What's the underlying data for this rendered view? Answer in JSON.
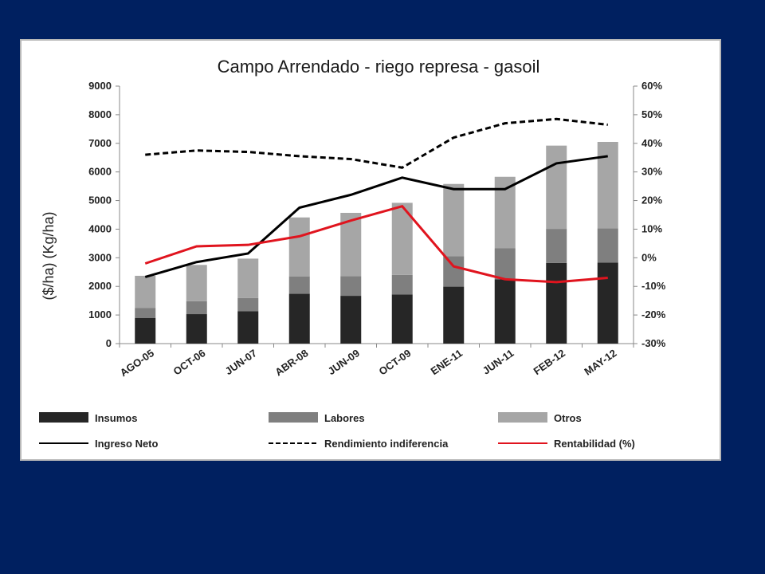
{
  "chart_data": {
    "type": "bar",
    "title": "Campo Arrendado - riego represa - gasoil",
    "ylabel": "($/ha)  (Kg/ha)",
    "ylim": [
      0,
      9000
    ],
    "y_ticks": [
      0,
      1000,
      2000,
      3000,
      4000,
      5000,
      6000,
      7000,
      8000,
      9000
    ],
    "y2lim": [
      -30,
      60
    ],
    "y2_ticks": [
      "-30%",
      "-20%",
      "-10%",
      "0%",
      "10%",
      "20%",
      "30%",
      "40%",
      "50%",
      "60%"
    ],
    "y2_values": [
      -30,
      -20,
      -10,
      0,
      10,
      20,
      30,
      40,
      50,
      60
    ],
    "categories": [
      "AGO-05",
      "OCT-06",
      "JUN-07",
      "ABR-08",
      "JUN-09",
      "OCT-09",
      "ENE-11",
      "JUN-11",
      "FEB-12",
      "MAY-12"
    ],
    "stacked": true,
    "grid": false,
    "legend_position": "bottom",
    "series": [
      {
        "name": "Insumos",
        "kind": "bar",
        "axis": "left",
        "color": "#262626",
        "values": [
          900,
          1030,
          1130,
          1740,
          1670,
          1720,
          1990,
          2250,
          2820,
          2830
        ]
      },
      {
        "name": "Labores",
        "kind": "bar",
        "axis": "left",
        "color": "#7f7f7f",
        "values": [
          350,
          450,
          460,
          610,
          690,
          680,
          1060,
          1080,
          1190,
          1200
        ]
      },
      {
        "name": "Otros",
        "kind": "bar",
        "axis": "left",
        "color": "#a6a6a6",
        "values": [
          1120,
          1270,
          1380,
          2060,
          2210,
          2520,
          2530,
          2500,
          2910,
          3020
        ]
      },
      {
        "name": "Ingreso Neto",
        "kind": "line",
        "axis": "left",
        "color": "#000000",
        "dash": "solid",
        "values": [
          2330,
          2850,
          3150,
          4750,
          5200,
          5800,
          5400,
          5400,
          6300,
          6550
        ]
      },
      {
        "name": "Rendimiento indiferencia",
        "kind": "line",
        "axis": "left",
        "color": "#000000",
        "dash": "dashed",
        "values": [
          6600,
          6750,
          6700,
          6550,
          6450,
          6150,
          7200,
          7700,
          7850,
          7650
        ]
      },
      {
        "name": "Rentabilidad (%)",
        "kind": "line",
        "axis": "right",
        "color": "#e0141e",
        "dash": "solid",
        "values": [
          -2,
          4,
          4.5,
          7.5,
          13,
          18,
          -3,
          -7.5,
          -8.5,
          -7
        ]
      }
    ],
    "legend": [
      {
        "label": "Insumos",
        "series": 0
      },
      {
        "label": "Labores",
        "series": 1
      },
      {
        "label": "Otros",
        "series": 2
      },
      {
        "label": "Ingreso Neto",
        "series": 3
      },
      {
        "label": "Rendimiento indiferencia",
        "series": 4
      },
      {
        "label": "Rentabilidad (%)",
        "series": 5
      }
    ]
  }
}
